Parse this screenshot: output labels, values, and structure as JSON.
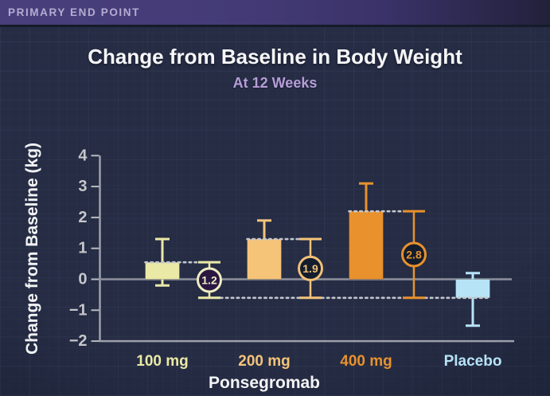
{
  "banner": {
    "label": "PRIMARY END POINT"
  },
  "chart_data": {
    "type": "bar",
    "title": "Change from Baseline in Body Weight",
    "subtitle": "At 12 Weeks",
    "xlabel": "Ponsegromab",
    "ylabel": "Change from Baseline (kg)",
    "ylim": [
      -2,
      4
    ],
    "yticks": [
      4,
      3,
      2,
      1,
      0,
      -1,
      -2
    ],
    "grid": false,
    "categories": [
      "100 mg",
      "200 mg",
      "400 mg",
      "Placebo"
    ],
    "bars": [
      {
        "label": "100 mg",
        "mean": 0.55,
        "ci_high": 1.3,
        "ci_low": -0.2,
        "color": "#ebe9a6"
      },
      {
        "label": "200 mg",
        "mean": 1.3,
        "ci_high": 1.9,
        "ci_low": null,
        "color": "#f5c479"
      },
      {
        "label": "400 mg",
        "mean": 2.2,
        "ci_high": 3.1,
        "ci_low": null,
        "color": "#e8912d"
      },
      {
        "label": "Placebo",
        "mean": -0.6,
        "ci_high": 0.2,
        "ci_low": -1.5,
        "color": "#b7e3f7"
      }
    ],
    "differences_vs_placebo": [
      {
        "dose": "100 mg",
        "label": "1.2",
        "value": 1.2,
        "ring_color": "#f0eec2",
        "fill": "#2a1843"
      },
      {
        "dose": "200 mg",
        "label": "1.9",
        "value": 1.9,
        "ring_color": "#f2c077",
        "fill": "#141d2d"
      },
      {
        "dose": "400 mg",
        "label": "2.8",
        "value": 2.8,
        "ring_color": "#e8912d",
        "fill": "#141d2d"
      }
    ],
    "colors": {
      "background": "#252c44",
      "banner": "#453c77",
      "banner_text": "#b5acd2",
      "title_text": "#f7f7f9",
      "subtitle_text": "#b79dd8",
      "axis": "#9da0ab",
      "zero_line": "#8e919c",
      "tick_text": "#c6c7cb",
      "dotted_line": "#c3c6cc",
      "xlabel_text": "#f4f4f6"
    }
  }
}
